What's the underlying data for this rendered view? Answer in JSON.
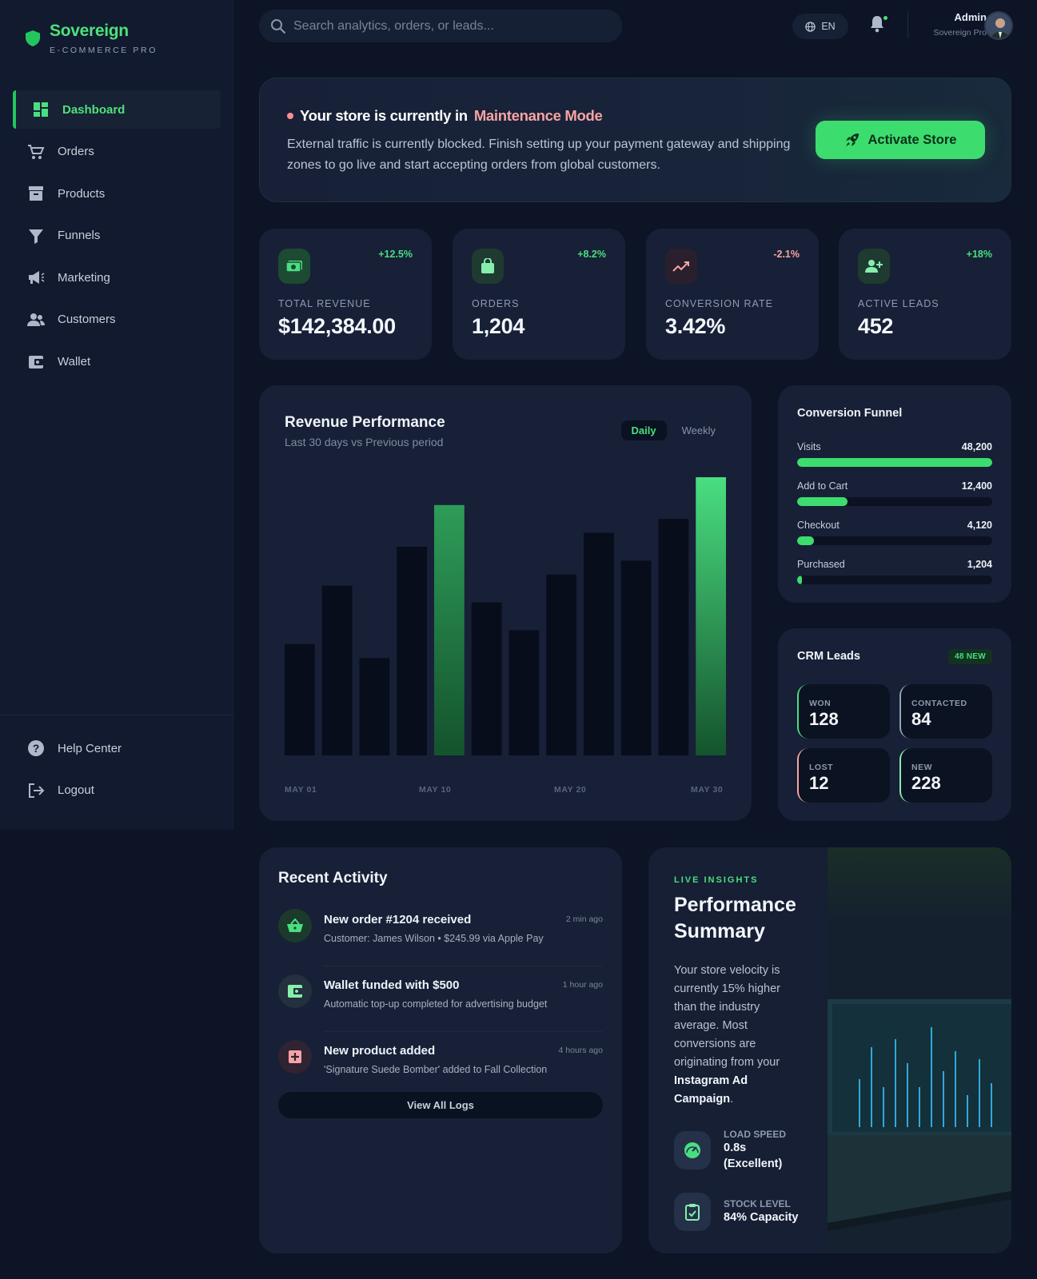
{
  "brand": {
    "name": "Sovereign",
    "tagline": "E-COMMERCE PRO"
  },
  "sidebar": {
    "items": [
      {
        "label": "Dashboard",
        "icon": "dashboard-icon",
        "active": true
      },
      {
        "label": "Orders",
        "icon": "cart-icon"
      },
      {
        "label": "Products",
        "icon": "archive-icon"
      },
      {
        "label": "Funnels",
        "icon": "filter-icon"
      },
      {
        "label": "Marketing",
        "icon": "megaphone-icon"
      },
      {
        "label": "Customers",
        "icon": "users-icon"
      },
      {
        "label": "Wallet",
        "icon": "wallet-icon"
      }
    ],
    "bottom": [
      {
        "label": "Help Center",
        "icon": "help-icon"
      },
      {
        "label": "Logout",
        "icon": "logout-icon"
      }
    ]
  },
  "topbar": {
    "search_placeholder": "Search analytics, orders, or leads...",
    "lang": "EN",
    "user": {
      "name": "Admin",
      "role": "Sovereign Pro"
    }
  },
  "banner": {
    "title_prefix": "Your store is currently in",
    "title_highlight": "Maintenance Mode",
    "body": "External traffic is currently blocked. Finish setting up your payment gateway and shipping zones to go live and start accepting orders from global customers.",
    "button": "Activate Store"
  },
  "stats": [
    {
      "label": "TOTAL REVENUE",
      "value": "$142,384.00",
      "change": "+12.5%",
      "trend": "up",
      "icon": "money-icon"
    },
    {
      "label": "ORDERS",
      "value": "1,204",
      "change": "+8.2%",
      "trend": "up",
      "icon": "bag-icon"
    },
    {
      "label": "CONVERSION RATE",
      "value": "3.42%",
      "change": "-2.1%",
      "trend": "down",
      "icon": "trend-icon"
    },
    {
      "label": "ACTIVE LEADS",
      "value": "452",
      "change": "+18%",
      "trend": "up",
      "icon": "user-plus-icon"
    }
  ],
  "revenue": {
    "title": "Revenue Performance",
    "subtitle": "Last 30 days vs Previous period",
    "tabs": [
      "Daily",
      "Weekly"
    ],
    "active_tab": "Daily",
    "x_labels": [
      "MAY 01",
      "MAY 10",
      "MAY 20",
      "MAY 30"
    ]
  },
  "chart_data": {
    "type": "bar",
    "values": [
      40,
      61,
      35,
      75,
      90,
      55,
      45,
      65,
      80,
      70,
      85,
      100
    ],
    "highlight": [
      4,
      11
    ],
    "ylim": [
      0,
      100
    ],
    "grid": false,
    "colors": {
      "bar": "#070d1b",
      "highlight": "#4ade80"
    },
    "x_ticks": [
      "MAY 01",
      "MAY 10",
      "MAY 20",
      "MAY 30"
    ]
  },
  "funnel": {
    "title": "Conversion Funnel",
    "rows": [
      {
        "label": "Visits",
        "value": "48,200",
        "pct": 100
      },
      {
        "label": "Add to Cart",
        "value": "12,400",
        "pct": 26
      },
      {
        "label": "Checkout",
        "value": "4,120",
        "pct": 8.5
      },
      {
        "label": "Purchased",
        "value": "1,204",
        "pct": 2.5
      }
    ]
  },
  "crm": {
    "title": "CRM Leads",
    "badge": "48 NEW",
    "boxes": [
      {
        "label": "WON",
        "value": "128",
        "color": "#4ade80"
      },
      {
        "label": "CONTACTED",
        "value": "84",
        "color": "#64748b"
      },
      {
        "label": "LOST",
        "value": "12",
        "color": "#f8a4a4"
      },
      {
        "label": "NEW",
        "value": "228",
        "color": "#86efac"
      }
    ]
  },
  "activity": {
    "title": "Recent Activity",
    "items": [
      {
        "title": "New order #1204 received",
        "desc": "Customer: James Wilson • $245.99 via Apple Pay",
        "time": "2 min ago",
        "icon": "basket-icon"
      },
      {
        "title": "Wallet funded with $500",
        "desc": "Automatic top-up completed for advertising budget",
        "time": "1 hour ago",
        "icon": "wallet-icon"
      },
      {
        "title": "New product added",
        "desc": "'Signature Suede Bomber' added to Fall Collection",
        "time": "4 hours ago",
        "icon": "plus-box-icon"
      }
    ],
    "button": "View All Logs"
  },
  "insights": {
    "kicker": "LIVE INSIGHTS",
    "title": "Performance Summary",
    "text_before": "Your store velocity is currently 15% higher than the industry average. Most conversions are originating from your ",
    "text_bold": "Instagram Ad Campaign",
    "text_after": ".",
    "metrics": [
      {
        "label": "LOAD SPEED",
        "value": "0.8s (Excellent)",
        "icon": "speedometer-icon"
      },
      {
        "label": "STOCK LEVEL",
        "value": "84% Capacity",
        "icon": "clipboard-check-icon"
      }
    ]
  }
}
